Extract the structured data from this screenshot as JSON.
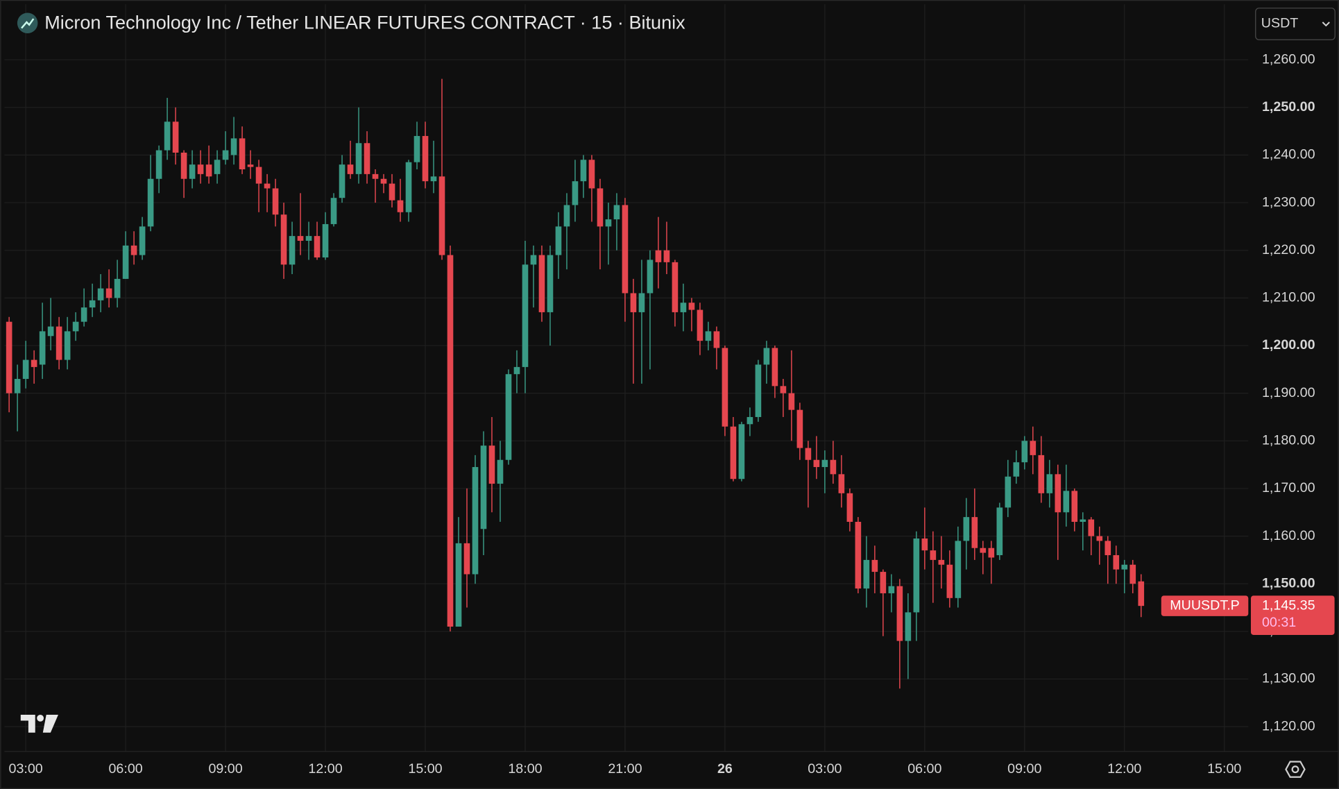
{
  "chart_data": {
    "type": "candlestick",
    "title": "Micron Technology Inc / Tether LINEAR FUTURES CONTRACT · 15 · Bitunix",
    "currency": "USDT",
    "grid": true,
    "xlim": [
      2.36,
      39.72
    ],
    "xticks": [
      {
        "value": 3,
        "label": "03:00"
      },
      {
        "value": 6,
        "label": "06:00"
      },
      {
        "value": 9,
        "label": "09:00"
      },
      {
        "value": 12,
        "label": "12:00"
      },
      {
        "value": 15,
        "label": "15:00"
      },
      {
        "value": 18,
        "label": "18:00"
      },
      {
        "value": 21,
        "label": "21:00"
      },
      {
        "value": 24,
        "label": "26"
      },
      {
        "value": 27,
        "label": "03:00"
      },
      {
        "value": 30,
        "label": "06:00"
      },
      {
        "value": 33,
        "label": "09:00"
      },
      {
        "value": 36,
        "label": "12:00"
      },
      {
        "value": 39,
        "label": "15:00"
      }
    ],
    "ylim": [
      1114.8,
      1271.65
    ],
    "yticks": [
      {
        "value": 1120,
        "label": "1,120.00"
      },
      {
        "value": 1130,
        "label": "1,130.00"
      },
      {
        "value": 1140,
        "label": "1,140.00"
      },
      {
        "value": 1150,
        "label": "1,150.00"
      },
      {
        "value": 1160,
        "label": "1,160.00"
      },
      {
        "value": 1170,
        "label": "1,170.00"
      },
      {
        "value": 1180,
        "label": "1,180.00"
      },
      {
        "value": 1190,
        "label": "1,190.00"
      },
      {
        "value": 1200,
        "label": "1,200.00"
      },
      {
        "value": 1210,
        "label": "1,210.00"
      },
      {
        "value": 1220,
        "label": "1,220.00"
      },
      {
        "value": 1230,
        "label": "1,230.00"
      },
      {
        "value": 1240,
        "label": "1,240.00"
      },
      {
        "value": 1250,
        "label": "1,250.00"
      },
      {
        "value": 1260,
        "label": "1,260.00"
      }
    ],
    "series": [
      {
        "name": "MUUSDT.P",
        "up_color": "#3a9a85",
        "down_color": "#e5474f",
        "last_price_label": "1,145.35",
        "countdown": "00:31",
        "x": [
          2.5,
          2.75,
          3,
          3.25,
          3.5,
          3.75,
          4,
          4.25,
          4.5,
          4.75,
          5,
          5.25,
          5.5,
          5.75,
          6,
          6.25,
          6.5,
          6.75,
          7,
          7.25,
          7.5,
          7.75,
          8,
          8.25,
          8.5,
          8.75,
          9,
          9.25,
          9.5,
          9.75,
          10,
          10.25,
          10.5,
          10.75,
          11,
          11.25,
          11.5,
          11.75,
          12,
          12.25,
          12.5,
          12.75,
          13,
          13.25,
          13.5,
          13.75,
          14,
          14.25,
          14.5,
          14.75,
          15,
          15.25,
          15.5,
          15.75,
          16,
          16.25,
          16.5,
          16.75,
          17,
          17.25,
          17.5,
          17.75,
          18,
          18.25,
          18.5,
          18.75,
          19,
          19.25,
          19.5,
          19.75,
          20,
          20.25,
          20.5,
          20.75,
          21,
          21.25,
          21.5,
          21.75,
          22,
          22.25,
          22.5,
          22.75,
          23,
          23.25,
          23.5,
          23.75,
          24,
          24.25,
          24.5,
          24.75,
          25,
          25.25,
          25.5,
          25.75,
          26,
          26.25,
          26.5,
          26.75,
          27,
          27.25,
          27.5,
          27.75,
          28,
          28.25,
          28.5,
          28.75,
          29,
          29.25,
          29.5,
          29.75,
          30,
          30.25,
          30.5,
          30.75,
          31,
          31.25,
          31.5,
          31.75,
          32,
          32.25,
          32.5,
          32.75,
          33,
          33.25,
          33.5,
          33.75,
          34,
          34.25,
          34.5,
          34.75,
          35,
          35.25,
          35.5,
          35.75,
          36,
          36.25,
          36.5
        ],
        "open": [
          1205,
          1190,
          1193,
          1197,
          1196,
          1202,
          1204,
          1197,
          1203,
          1205,
          1208,
          1209.5,
          1212,
          1210,
          1214,
          1221,
          1219,
          1225,
          1235,
          1241,
          1247,
          1240.5,
          1235,
          1238,
          1238,
          1236,
          1239,
          1240,
          1243.5,
          1238,
          1237.5,
          1234,
          1233,
          1227.5,
          1217,
          1223,
          1222,
          1223,
          1218.5,
          1225.5,
          1231,
          1238,
          1236,
          1242.5,
          1236,
          1235,
          1234,
          1230.5,
          1228,
          1238.5,
          1244,
          1234.5,
          1235.5,
          1219,
          1141,
          1158.5,
          1152,
          1161.5,
          1179,
          1171,
          1176,
          1194,
          1195.5,
          1217,
          1219,
          1207,
          1219,
          1225,
          1229.5,
          1234.5,
          1239,
          1233,
          1225,
          1226.5,
          1229.5,
          1211,
          1207,
          1211,
          1220,
          1220,
          1217.5,
          1207,
          1209,
          1207.5,
          1201,
          1203,
          1199.5,
          1183,
          1172,
          1183.5,
          1185,
          1196,
          1199.5,
          1191.5,
          1190,
          1186.5,
          1178.5,
          1176,
          1174.5,
          1176,
          1173,
          1169,
          1163,
          1149,
          1155,
          1152.5,
          1148,
          1149.5,
          1138,
          1144,
          1159.5,
          1157,
          1155,
          1154,
          1147,
          1159,
          1164,
          1157.5,
          1157.5,
          1156,
          1166,
          1172.5,
          1175.5,
          1180,
          1177,
          1169,
          1173,
          1165,
          1169.5,
          1163,
          1163.5,
          1160,
          1159,
          1156,
          1153,
          1154,
          1150.5
        ],
        "high": [
          1206,
          1196,
          1201,
          1199,
          1209,
          1210,
          1206,
          1206,
          1207,
          1212,
          1213,
          1215,
          1216,
          1218,
          1224,
          1224,
          1227,
          1240,
          1242,
          1252,
          1250,
          1241,
          1241,
          1241,
          1242,
          1241,
          1245,
          1248,
          1246,
          1241,
          1239,
          1236,
          1235,
          1230,
          1226,
          1232,
          1226,
          1226,
          1228,
          1232,
          1240,
          1243,
          1250,
          1245,
          1237,
          1236,
          1236,
          1235,
          1239,
          1247,
          1247,
          1243,
          1256,
          1221,
          1164,
          1170,
          1177,
          1182,
          1185,
          1180,
          1195,
          1199,
          1222,
          1221,
          1221,
          1221,
          1228,
          1232,
          1239,
          1240,
          1240,
          1235,
          1230,
          1232,
          1231,
          1214,
          1218,
          1220,
          1227,
          1226,
          1218,
          1213,
          1210,
          1209,
          1205,
          1204,
          1200,
          1185,
          1184,
          1187,
          1197,
          1201,
          1200,
          1193,
          1199,
          1188,
          1180,
          1181,
          1178,
          1180,
          1177,
          1170,
          1164,
          1160,
          1158,
          1153,
          1152,
          1151,
          1148,
          1161,
          1166,
          1161,
          1160,
          1157,
          1162,
          1168,
          1170,
          1159,
          1159,
          1167,
          1176,
          1178,
          1181,
          1183,
          1181,
          1176,
          1175,
          1175,
          1170,
          1165,
          1164,
          1162,
          1160,
          1158,
          1155,
          1155,
          1152
        ],
        "low": [
          1186,
          1182,
          1191,
          1192,
          1193,
          1199,
          1195,
          1195,
          1201,
          1204,
          1206,
          1207,
          1208,
          1208,
          1214,
          1217,
          1218,
          1224,
          1232,
          1239,
          1238,
          1231,
          1233,
          1234,
          1234,
          1234,
          1238,
          1238,
          1236,
          1235,
          1228,
          1228,
          1225,
          1214,
          1215,
          1219,
          1218,
          1218,
          1218,
          1225,
          1230,
          1235,
          1234,
          1234,
          1230,
          1232,
          1229,
          1226,
          1226,
          1237,
          1233,
          1232,
          1218,
          1140,
          1141,
          1145,
          1150,
          1156,
          1165,
          1163,
          1175,
          1190,
          1190,
          1208,
          1205,
          1200,
          1214,
          1216,
          1226,
          1231,
          1226,
          1216,
          1217,
          1220,
          1205,
          1192,
          1192,
          1195,
          1212,
          1215,
          1204,
          1203,
          1203,
          1198,
          1199,
          1195,
          1181,
          1171.5,
          1171.5,
          1181,
          1184,
          1192,
          1189,
          1185,
          1180,
          1176,
          1166,
          1172,
          1169,
          1171,
          1166,
          1161,
          1148,
          1145,
          1148,
          1139,
          1144,
          1128,
          1130,
          1138,
          1153,
          1146,
          1149,
          1145,
          1145,
          1153,
          1155,
          1152,
          1150,
          1155,
          1164,
          1171,
          1174,
          1173,
          1167,
          1166,
          1155,
          1162,
          1161,
          1157,
          1156,
          1154,
          1150,
          1150,
          1148,
          1148,
          1143
        ],
        "close": [
          1190,
          1193,
          1197,
          1195.5,
          1203,
          1204,
          1197,
          1203,
          1205,
          1208,
          1209.5,
          1212,
          1210,
          1214,
          1221,
          1219,
          1225,
          1235,
          1241,
          1247,
          1240.5,
          1235,
          1238,
          1236,
          1235.5,
          1239,
          1241,
          1243.5,
          1237,
          1237.5,
          1234,
          1233,
          1227.5,
          1217,
          1223,
          1222,
          1223,
          1218.5,
          1225.5,
          1231,
          1238,
          1236,
          1242.5,
          1236,
          1235,
          1234,
          1230.5,
          1228,
          1238.5,
          1244,
          1234.5,
          1235.5,
          1219,
          1141,
          1158.5,
          1152,
          1174.5,
          1179,
          1171,
          1176,
          1194,
          1195.5,
          1217,
          1219,
          1207,
          1219,
          1225,
          1229.5,
          1234.5,
          1239,
          1233,
          1225,
          1226.5,
          1229.5,
          1211,
          1207,
          1211,
          1218,
          1217.5,
          1217.5,
          1207,
          1209,
          1207.5,
          1201,
          1203,
          1199.5,
          1183,
          1172,
          1183.5,
          1185,
          1196,
          1199.5,
          1191.5,
          1190,
          1186.5,
          1178.5,
          1176,
          1174.5,
          1176,
          1173,
          1169,
          1163,
          1149,
          1155,
          1152.5,
          1148,
          1149.5,
          1138,
          1144,
          1159.5,
          1157,
          1155,
          1154,
          1147,
          1159,
          1164,
          1157.5,
          1156.5,
          1155.5,
          1166,
          1172.5,
          1175.5,
          1180,
          1177,
          1169,
          1173,
          1165,
          1169.5,
          1163,
          1163.5,
          1160,
          1159,
          1156,
          1153,
          1154,
          1150,
          1145.35
        ]
      }
    ]
  }
}
